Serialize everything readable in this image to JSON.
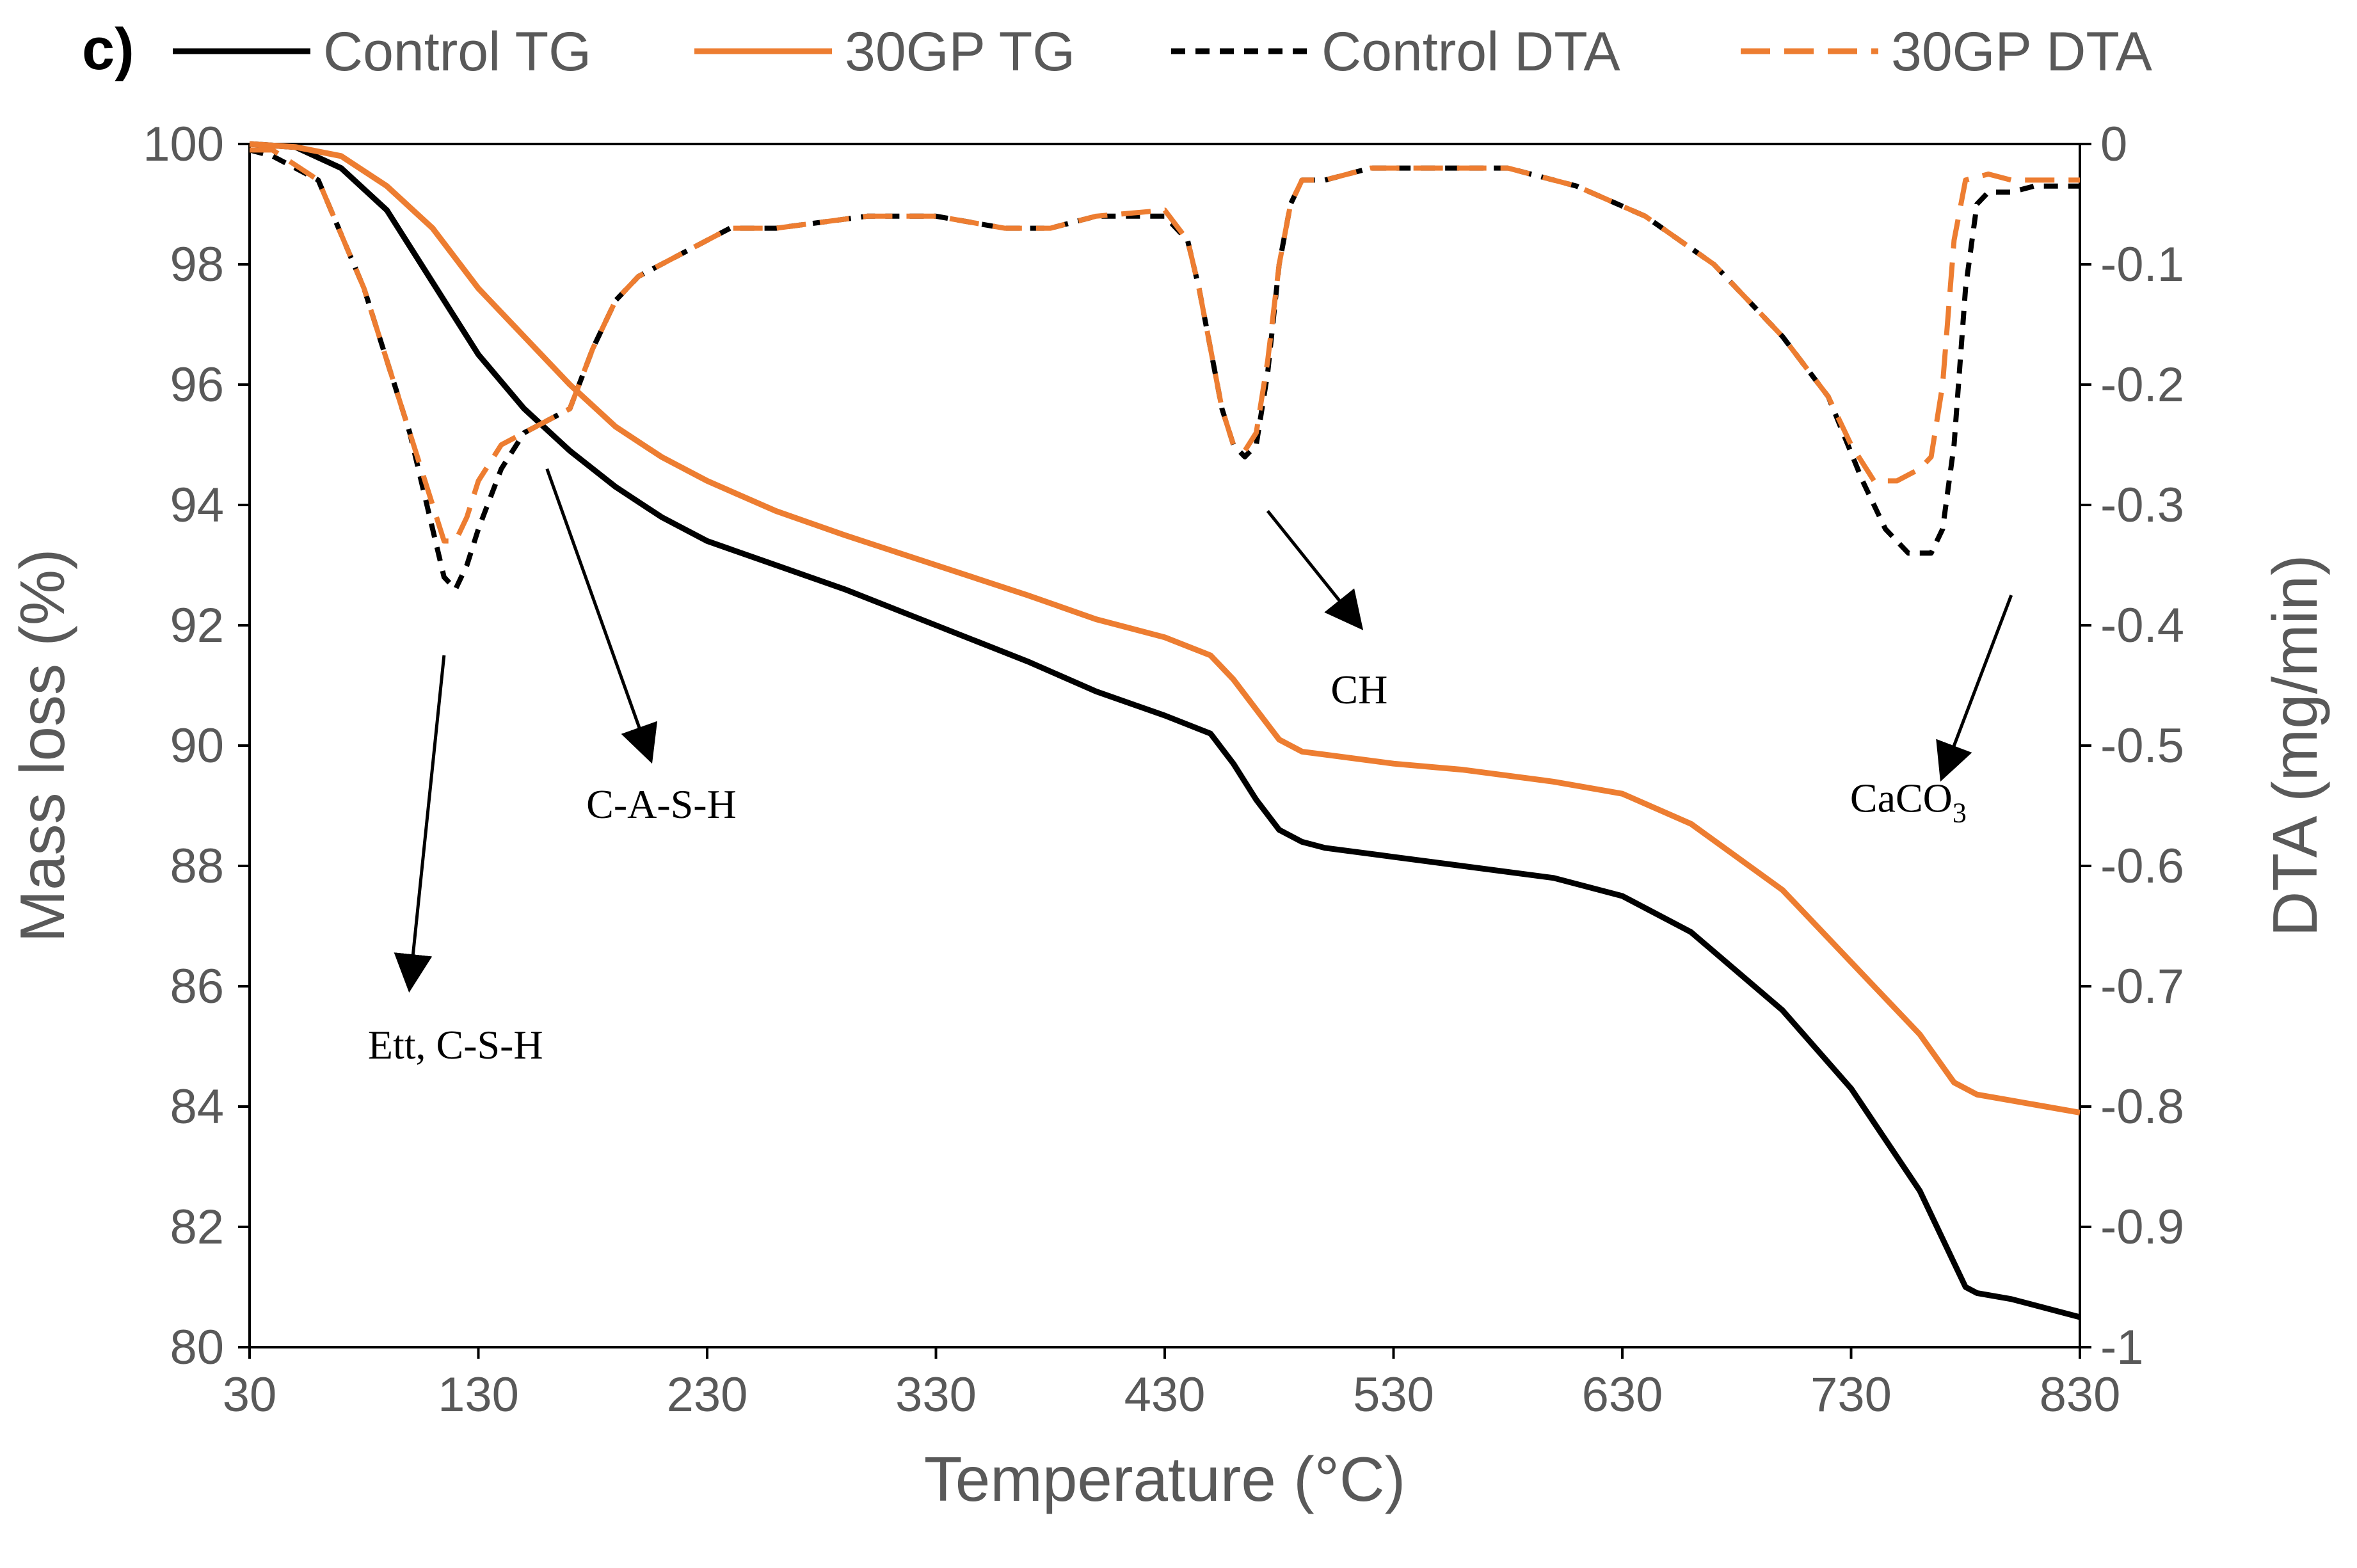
{
  "chart_data": {
    "type": "line",
    "panel_label": "c)",
    "title": "",
    "xlabel": "Temperature (°C)",
    "ylabel": "Mass loss (%)",
    "y2label": "DTA (mg/min)",
    "xlim": [
      30,
      830
    ],
    "ylim": [
      80,
      100
    ],
    "y2lim": [
      -1,
      0
    ],
    "xticks": [
      30,
      130,
      230,
      330,
      430,
      530,
      630,
      730,
      830
    ],
    "xtick_labels": [
      "30",
      "130",
      "230",
      "330",
      "430",
      "530",
      "630",
      "730",
      "830"
    ],
    "yticks": [
      80,
      82,
      84,
      86,
      88,
      90,
      92,
      94,
      96,
      98,
      100
    ],
    "ytick_labels": [
      "80",
      "82",
      "84",
      "86",
      "88",
      "90",
      "92",
      "94",
      "96",
      "98",
      "100"
    ],
    "y2ticks": [
      -1,
      -0.9,
      -0.8,
      -0.7,
      -0.6,
      -0.5,
      -0.4,
      -0.3,
      -0.2,
      -0.1,
      0
    ],
    "y2tick_labels": [
      "-1",
      "-0.9",
      "-0.8",
      "-0.7",
      "-0.6",
      "-0.5",
      "-0.4",
      "-0.3",
      "-0.2",
      "-0.1",
      "0"
    ],
    "grid": false,
    "legend_position": "top",
    "series": [
      {
        "name": "Control TG",
        "axis": "left",
        "style": "solid",
        "color": "#000000",
        "x": [
          30,
          50,
          70,
          90,
          110,
          130,
          150,
          170,
          190,
          210,
          230,
          260,
          290,
          330,
          370,
          400,
          430,
          450,
          460,
          470,
          480,
          490,
          500,
          530,
          560,
          600,
          630,
          660,
          700,
          730,
          760,
          780,
          785,
          800,
          830
        ],
        "y": [
          100,
          99.95,
          99.6,
          98.9,
          97.7,
          96.5,
          95.6,
          94.9,
          94.3,
          93.8,
          93.4,
          93.0,
          92.6,
          92.0,
          91.4,
          90.9,
          90.5,
          90.2,
          89.7,
          89.1,
          88.6,
          88.4,
          88.3,
          88.15,
          88.0,
          87.8,
          87.5,
          86.9,
          85.6,
          84.3,
          82.6,
          81.0,
          80.9,
          80.8,
          80.5
        ]
      },
      {
        "name": "30GP TG",
        "axis": "left",
        "style": "solid",
        "color": "#ED7D31",
        "x": [
          30,
          50,
          70,
          90,
          110,
          130,
          150,
          170,
          190,
          210,
          230,
          260,
          290,
          330,
          370,
          400,
          430,
          450,
          460,
          470,
          480,
          490,
          500,
          530,
          560,
          600,
          630,
          660,
          700,
          730,
          760,
          775,
          785,
          800,
          830
        ],
        "y": [
          100,
          99.95,
          99.8,
          99.3,
          98.6,
          97.6,
          96.8,
          96.0,
          95.3,
          94.8,
          94.4,
          93.9,
          93.5,
          93.0,
          92.5,
          92.1,
          91.8,
          91.5,
          91.1,
          90.6,
          90.1,
          89.9,
          89.85,
          89.7,
          89.6,
          89.4,
          89.2,
          88.7,
          87.6,
          86.4,
          85.2,
          84.4,
          84.2,
          84.1,
          83.9
        ]
      },
      {
        "name": "Control DTA",
        "axis": "right",
        "style": "dashed",
        "color": "#000000",
        "x": [
          30,
          40,
          60,
          80,
          100,
          110,
          115,
          120,
          125,
          130,
          140,
          150,
          160,
          170,
          180,
          190,
          200,
          220,
          240,
          260,
          280,
          300,
          330,
          360,
          380,
          400,
          430,
          440,
          445,
          450,
          455,
          460,
          465,
          470,
          475,
          480,
          485,
          490,
          500,
          520,
          550,
          580,
          610,
          640,
          670,
          700,
          720,
          735,
          745,
          755,
          765,
          770,
          775,
          780,
          785,
          790,
          800,
          810,
          830
        ],
        "y": [
          -0.005,
          -0.01,
          -0.03,
          -0.12,
          -0.24,
          -0.32,
          -0.36,
          -0.37,
          -0.35,
          -0.32,
          -0.27,
          -0.24,
          -0.23,
          -0.22,
          -0.17,
          -0.13,
          -0.11,
          -0.09,
          -0.07,
          -0.07,
          -0.065,
          -0.06,
          -0.06,
          -0.07,
          -0.07,
          -0.06,
          -0.06,
          -0.08,
          -0.12,
          -0.17,
          -0.22,
          -0.25,
          -0.26,
          -0.25,
          -0.19,
          -0.1,
          -0.05,
          -0.03,
          -0.03,
          -0.02,
          -0.02,
          -0.02,
          -0.035,
          -0.06,
          -0.1,
          -0.16,
          -0.21,
          -0.28,
          -0.32,
          -0.34,
          -0.34,
          -0.32,
          -0.25,
          -0.12,
          -0.05,
          -0.04,
          -0.04,
          -0.035,
          -0.035
        ]
      },
      {
        "name": "30GP DTA",
        "axis": "right",
        "style": "dashed",
        "color": "#ED7D31",
        "x": [
          30,
          40,
          60,
          80,
          100,
          110,
          115,
          120,
          125,
          130,
          140,
          150,
          160,
          170,
          180,
          190,
          200,
          220,
          240,
          260,
          280,
          300,
          330,
          360,
          380,
          400,
          430,
          440,
          445,
          450,
          455,
          460,
          465,
          470,
          475,
          480,
          485,
          490,
          500,
          520,
          550,
          580,
          610,
          640,
          670,
          700,
          720,
          730,
          740,
          750,
          760,
          765,
          770,
          775,
          780,
          790,
          800,
          810,
          830
        ],
        "y": [
          -0.005,
          -0.005,
          -0.03,
          -0.12,
          -0.24,
          -0.3,
          -0.33,
          -0.33,
          -0.31,
          -0.28,
          -0.25,
          -0.24,
          -0.23,
          -0.22,
          -0.17,
          -0.13,
          -0.11,
          -0.09,
          -0.07,
          -0.07,
          -0.065,
          -0.06,
          -0.06,
          -0.07,
          -0.07,
          -0.06,
          -0.055,
          -0.08,
          -0.12,
          -0.17,
          -0.22,
          -0.25,
          -0.255,
          -0.24,
          -0.18,
          -0.1,
          -0.05,
          -0.03,
          -0.03,
          -0.02,
          -0.02,
          -0.02,
          -0.035,
          -0.06,
          -0.1,
          -0.16,
          -0.21,
          -0.25,
          -0.28,
          -0.28,
          -0.27,
          -0.26,
          -0.2,
          -0.08,
          -0.03,
          -0.025,
          -0.03,
          -0.03,
          -0.03
        ]
      }
    ],
    "annotations": [
      {
        "text": "Ett, C-S-H",
        "arrow_from": [
          115,
          91.5
        ],
        "arrow_to": [
          100,
          86.0
        ],
        "label_at": [
          120,
          84.8
        ]
      },
      {
        "text": "C-A-S-H",
        "arrow_from": [
          160,
          94.6
        ],
        "arrow_to": [
          205,
          89.8
        ],
        "label_at": [
          210,
          88.8
        ]
      },
      {
        "text": "CH",
        "arrow_from": [
          475,
          93.9
        ],
        "arrow_to": [
          515,
          92.0
        ],
        "label_at": [
          515,
          90.7
        ]
      },
      {
        "text": "CaCO",
        "subscript": "3",
        "arrow_from": [
          800,
          92.5
        ],
        "arrow_to": [
          770,
          89.5
        ],
        "label_at": [
          755,
          88.9
        ]
      }
    ]
  }
}
